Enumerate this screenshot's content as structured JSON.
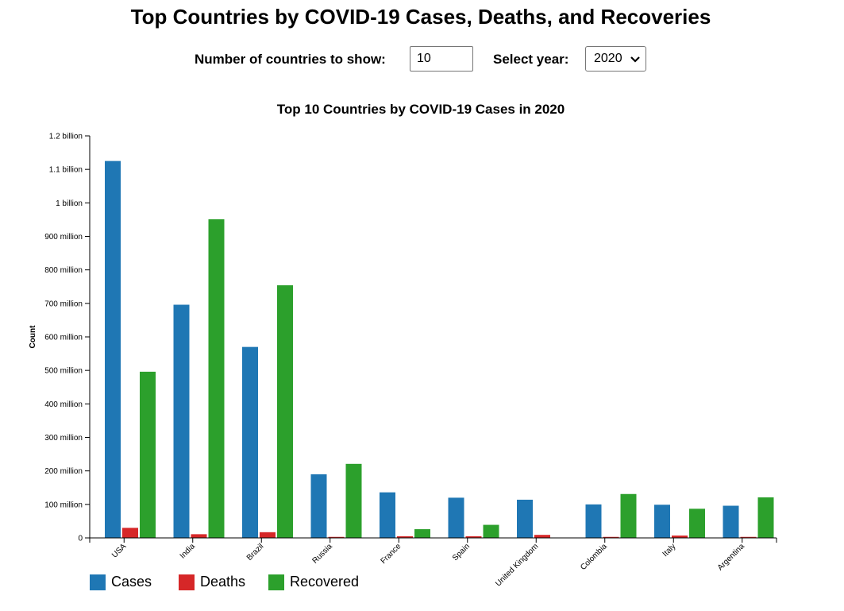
{
  "page": {
    "title": "Top Countries by COVID-19 Cases, Deaths, and Recoveries"
  },
  "controls": {
    "count_label": "Number of countries to show:",
    "count_value": "10",
    "year_label": "Select year:",
    "year_value": "2020"
  },
  "chart_data": {
    "type": "bar",
    "title": "Top 10 Countries by COVID-19 Cases in 2020",
    "xlabel": "",
    "ylabel": "Count",
    "ylim": [
      0,
      1200000000
    ],
    "y_ticks": [
      {
        "value": 0,
        "label": "0"
      },
      {
        "value": 100000000,
        "label": "100 million"
      },
      {
        "value": 200000000,
        "label": "200 million"
      },
      {
        "value": 300000000,
        "label": "300 million"
      },
      {
        "value": 400000000,
        "label": "400 million"
      },
      {
        "value": 500000000,
        "label": "500 million"
      },
      {
        "value": 600000000,
        "label": "600 million"
      },
      {
        "value": 700000000,
        "label": "700 million"
      },
      {
        "value": 800000000,
        "label": "800 million"
      },
      {
        "value": 900000000,
        "label": "900 million"
      },
      {
        "value": 1000000000,
        "label": "1 billion"
      },
      {
        "value": 1100000000,
        "label": "1.1 billion"
      },
      {
        "value": 1200000000,
        "label": "1.2 billion"
      }
    ],
    "grid": false,
    "legend_position": "bottom-left",
    "categories": [
      "USA",
      "India",
      "Brazil",
      "Russia",
      "France",
      "Spain",
      "United Kingdom",
      "Colombia",
      "Italy",
      "Argentina"
    ],
    "series": [
      {
        "name": "Cases",
        "color": "#1f77b4",
        "values": [
          1125000000,
          696000000,
          570000000,
          190000000,
          136000000,
          120000000,
          114000000,
          100000000,
          99000000,
          96000000
        ]
      },
      {
        "name": "Deaths",
        "color": "#d62728",
        "values": [
          30000000,
          11000000,
          17000000,
          3000000,
          5000000,
          5000000,
          9000000,
          3000000,
          7000000,
          3000000
        ]
      },
      {
        "name": "Recovered",
        "color": "#2ca02c",
        "values": [
          496000000,
          951000000,
          754000000,
          221000000,
          26000000,
          39000000,
          0,
          131000000,
          87000000,
          121000000
        ]
      }
    ]
  }
}
